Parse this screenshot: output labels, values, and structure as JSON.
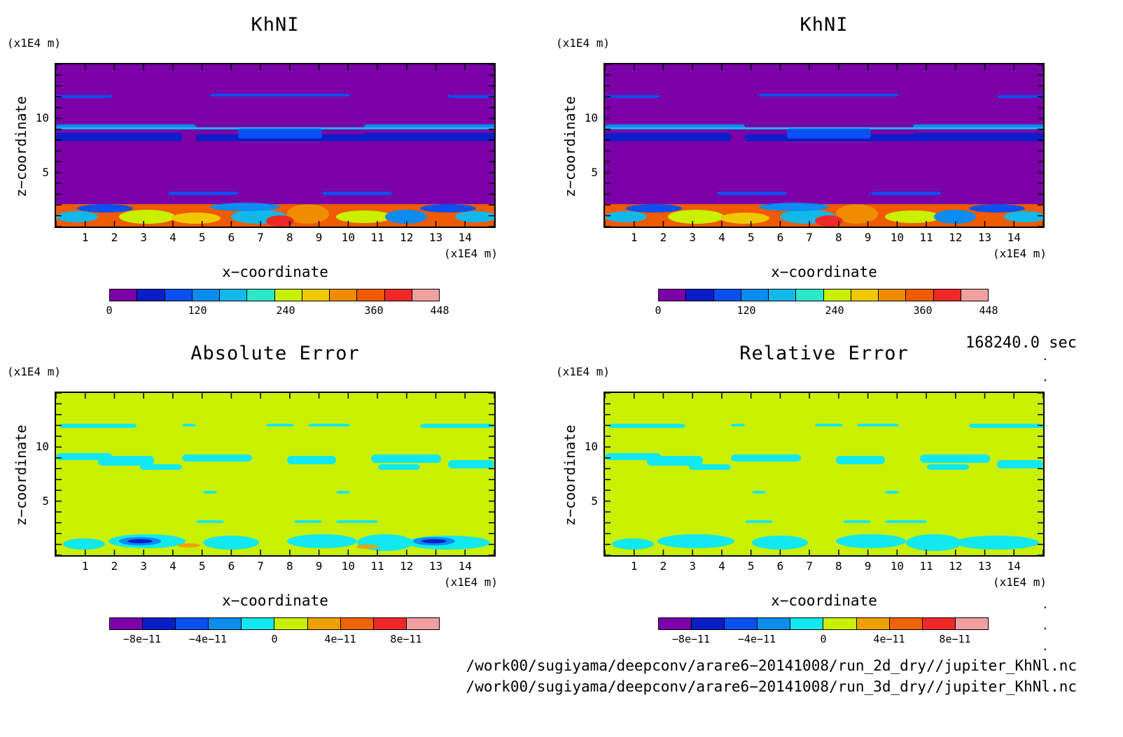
{
  "colors": {
    "khnl": [
      "#7b00a8",
      "#0a1ec8",
      "#0a50f0",
      "#0a8cf0",
      "#12b8ea",
      "#2ae8c8",
      "#c8f000",
      "#f0c800",
      "#f08c00",
      "#f05a00",
      "#f02828",
      "#f0a0a0"
    ],
    "err": [
      "#7b00a8",
      "#0a1ec8",
      "#0a50f0",
      "#0a8cf0",
      "#12e8f0",
      "#c8f000",
      "#f0a000",
      "#f06400",
      "#f02828",
      "#f0a0a0"
    ]
  },
  "panels": [
    {
      "title": "KhNI",
      "unit_y": "(x1E4 m)",
      "unit_x": "(x1E4 m)",
      "ylabel": "z−coordinate",
      "xlabel": "x−coordinate",
      "cbar_labels": [
        "0",
        "120",
        "240",
        "360",
        "448"
      ],
      "cbar_type": "khnl"
    },
    {
      "title": "KhNI",
      "unit_y": "(x1E4 m)",
      "unit_x": "(x1E4 m)",
      "ylabel": "z−coordinate",
      "xlabel": "x−coordinate",
      "cbar_labels": [
        "0",
        "120",
        "240",
        "360",
        "448"
      ],
      "cbar_type": "khnl"
    },
    {
      "title": "Absolute Error",
      "unit_y": "(x1E4 m)",
      "unit_x": "(x1E4 m)",
      "ylabel": "z−coordinate",
      "xlabel": "x−coordinate",
      "cbar_labels": [
        "−8e−11",
        "−4e−11",
        "0",
        "4e−11",
        "8e−11"
      ],
      "cbar_type": "err"
    },
    {
      "title": "Relative Error",
      "unit_y": "(x1E4 m)",
      "unit_x": "(x1E4 m)",
      "ylabel": "z−coordinate",
      "xlabel": "x−coordinate",
      "cbar_labels": [
        "−8e−11",
        "−4e−11",
        "0",
        "4e−11",
        "8e−11"
      ],
      "cbar_type": "err"
    }
  ],
  "time_label": "168240.0 sec",
  "paths": [
    "/work00/sugiyama/deepconv/arare6−20141008/run_2d_dry//jupiter_KhNl.nc",
    "/work00/sugiyama/deepconv/arare6−20141008/run_3d_dry//jupiter_KhNl.nc"
  ],
  "chart_data": [
    {
      "type": "heatmap",
      "title": "KhNI",
      "xlabel": "x−coordinate",
      "ylabel": "z−coordinate",
      "xunit": "(x1E4 m)",
      "yunit": "(x1E4 m)",
      "x_ticks": [
        1,
        2,
        3,
        4,
        5,
        6,
        7,
        8,
        9,
        10,
        11,
        12,
        13,
        14
      ],
      "y_ticks": [
        5,
        10
      ],
      "xlim": [
        0,
        15
      ],
      "ylim": [
        0,
        15
      ],
      "colorbar_ticks": [
        0,
        120,
        240,
        360,
        448
      ],
      "colorbar_range": [
        0,
        448
      ]
    },
    {
      "type": "heatmap",
      "title": "KhNI",
      "xlabel": "x−coordinate",
      "ylabel": "z−coordinate",
      "xunit": "(x1E4 m)",
      "yunit": "(x1E4 m)",
      "x_ticks": [
        1,
        2,
        3,
        4,
        5,
        6,
        7,
        8,
        9,
        10,
        11,
        12,
        13,
        14
      ],
      "y_ticks": [
        5,
        10
      ],
      "xlim": [
        0,
        15
      ],
      "ylim": [
        0,
        15
      ],
      "colorbar_ticks": [
        0,
        120,
        240,
        360,
        448
      ],
      "colorbar_range": [
        0,
        448
      ]
    },
    {
      "type": "heatmap",
      "title": "Absolute Error",
      "xlabel": "x−coordinate",
      "ylabel": "z−coordinate",
      "xunit": "(x1E4 m)",
      "yunit": "(x1E4 m)",
      "x_ticks": [
        1,
        2,
        3,
        4,
        5,
        6,
        7,
        8,
        9,
        10,
        11,
        12,
        13,
        14
      ],
      "y_ticks": [
        5,
        10
      ],
      "xlim": [
        0,
        15
      ],
      "ylim": [
        0,
        15
      ],
      "colorbar_ticks": [
        -8e-11,
        -4e-11,
        0,
        4e-11,
        8e-11
      ],
      "colorbar_range": [
        -1e-10,
        1e-10
      ]
    },
    {
      "type": "heatmap",
      "title": "Relative Error",
      "xlabel": "x−coordinate",
      "ylabel": "z−coordinate",
      "xunit": "(x1E4 m)",
      "yunit": "(x1E4 m)",
      "x_ticks": [
        1,
        2,
        3,
        4,
        5,
        6,
        7,
        8,
        9,
        10,
        11,
        12,
        13,
        14
      ],
      "y_ticks": [
        5,
        10
      ],
      "xlim": [
        0,
        15
      ],
      "ylim": [
        0,
        15
      ],
      "colorbar_ticks": [
        -8e-11,
        -4e-11,
        0,
        4e-11,
        8e-11
      ],
      "colorbar_range": [
        -1e-10,
        1e-10
      ]
    }
  ]
}
